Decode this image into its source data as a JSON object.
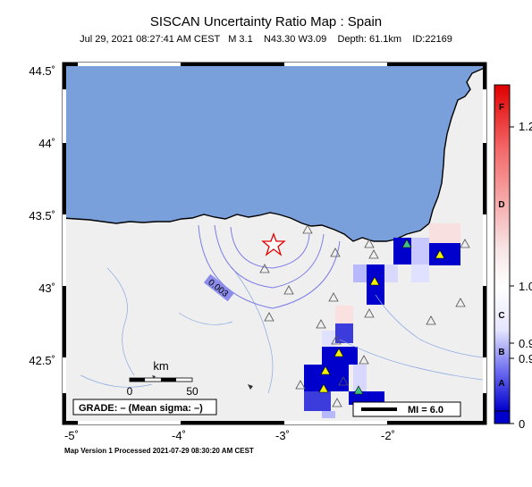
{
  "title": "SISCAN Uncertainty Ratio Map : Spain",
  "subtitle": "Jul 29, 2021 08:27:41 AM CEST   M 3.1    N43.30 W3.09    Depth: 61.1km    ID:22169",
  "footer": "Map Version 1 Processed 2021-07-29 08:30:20 AM CEST",
  "map": {
    "lat_ticks": [
      "44.5˚",
      "44˚",
      "43.5˚",
      "43˚",
      "42.5˚"
    ],
    "lon_ticks": [
      "-5˚",
      "-4˚",
      "-3˚",
      "-2˚"
    ],
    "contour_label": "0.003",
    "scalebar": {
      "unit": "km",
      "start": "0",
      "end": "50"
    },
    "grade_text": "GRADE: – (Mean sigma: –)",
    "mi_legend": "MI = 6.0",
    "colors": {
      "sea": "#7aa0dc",
      "land": "#efefef",
      "low": "#0000cc",
      "high": "#e00000",
      "station": "#f2f200"
    }
  },
  "colorbar": {
    "letters": [
      "F",
      "D",
      "C",
      "B",
      "A"
    ],
    "ticks": [
      "1.2",
      "1.0",
      "0.9",
      "0.9",
      "0"
    ]
  }
}
